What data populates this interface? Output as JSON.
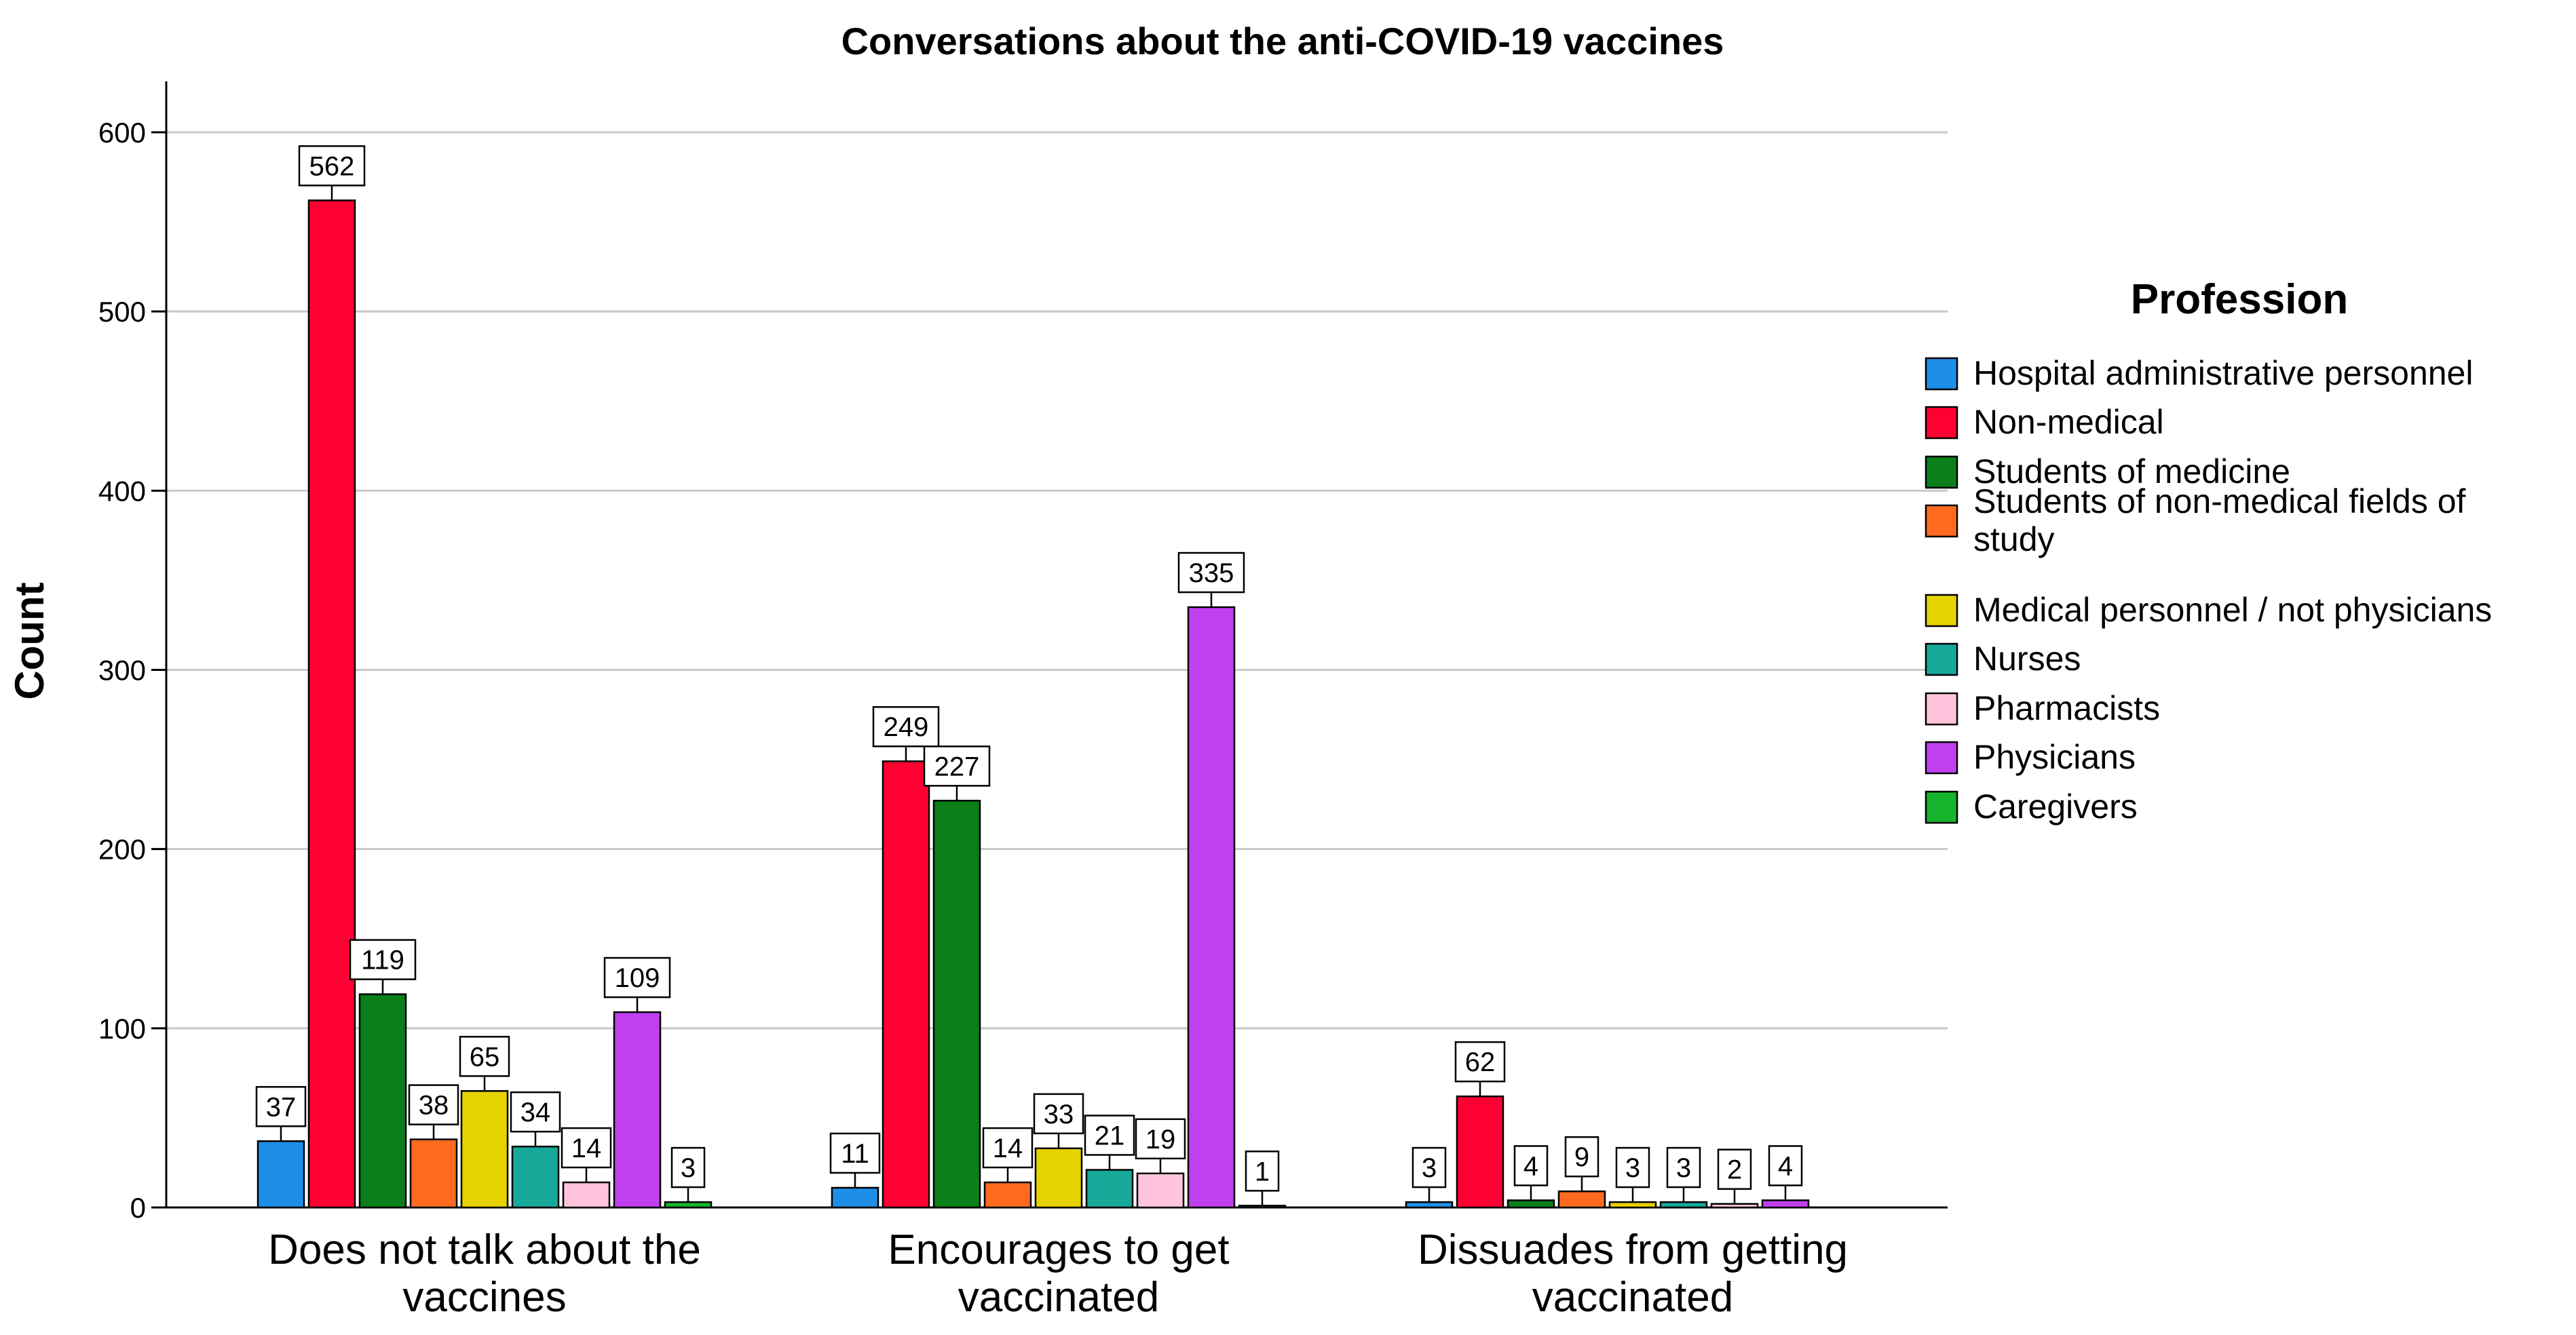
{
  "chart_data": {
    "type": "bar",
    "title": "Conversations about the anti-COVID-19 vaccines",
    "xlabel": "",
    "ylabel": "Count",
    "ylim": [
      0,
      600
    ],
    "yticks": [
      0,
      100,
      200,
      300,
      400,
      500,
      600
    ],
    "grid": true,
    "legend_position": "right",
    "legend_title": "Profession",
    "categories": [
      [
        "Does not talk about the",
        "vaccines"
      ],
      [
        "Encourages to get",
        "vaccinated"
      ],
      [
        "Dissuades from getting",
        "vaccinated"
      ]
    ],
    "series": [
      {
        "name": "Hospital administrative personnel",
        "color": "#1f8ee6",
        "values": [
          37,
          11,
          3
        ]
      },
      {
        "name": "Non-medical",
        "color": "#ff0033",
        "values": [
          562,
          249,
          62
        ]
      },
      {
        "name": "Students of medicine",
        "color": "#0a7f1a",
        "values": [
          119,
          227,
          4
        ]
      },
      {
        "name": "Students of non-medical fields of study",
        "color": "#ff6a1f",
        "values": [
          38,
          14,
          9
        ]
      },
      {
        "name": "Medical personnel / not physicians",
        "color": "#e6d200",
        "values": [
          65,
          33,
          3
        ]
      },
      {
        "name": "Nurses",
        "color": "#18a89a",
        "values": [
          34,
          21,
          3
        ]
      },
      {
        "name": "Pharmacists",
        "color": "#ffc4dc",
        "values": [
          14,
          19,
          2
        ]
      },
      {
        "name": "Physicians",
        "color": "#c040f0",
        "values": [
          109,
          335,
          4
        ]
      },
      {
        "name": "Caregivers",
        "color": "#16b52d",
        "values": [
          3,
          1,
          null
        ]
      }
    ]
  }
}
